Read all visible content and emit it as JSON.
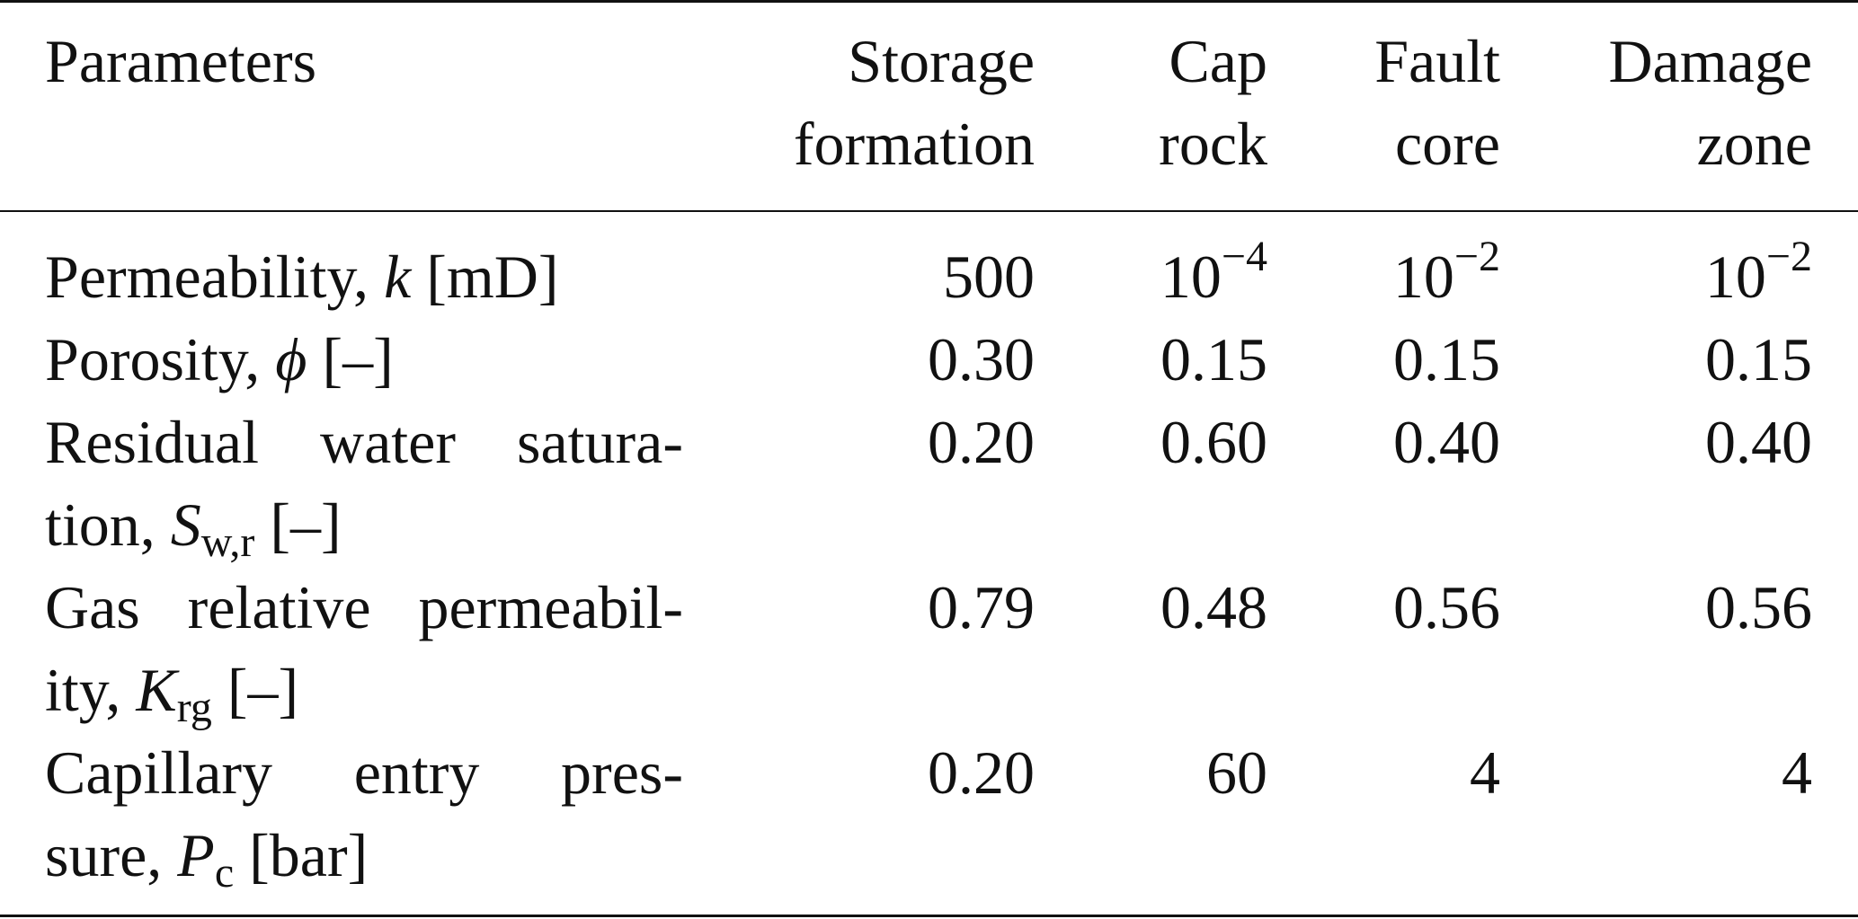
{
  "table": {
    "header": {
      "col0": "Parameters",
      "col1": [
        "Storage",
        "formation"
      ],
      "col2": [
        "Cap",
        "rock"
      ],
      "col3": [
        "Fault",
        "core"
      ],
      "col4": [
        "Damage",
        "zone"
      ]
    },
    "rows": [
      {
        "label_lines": [
          "Permeability, k [mD]"
        ],
        "label_text": "Permeability, ",
        "symbol": "k",
        "unit": " [mD]",
        "values": [
          "500",
          "10",
          "10",
          "10"
        ],
        "exponents": [
          "",
          "−4",
          "−2",
          "−2"
        ]
      },
      {
        "label_text": "Porosity, ",
        "symbol": "ϕ",
        "unit": " [–]",
        "values": [
          "0.30",
          "0.15",
          "0.15",
          "0.15"
        ]
      },
      {
        "label_line1": "Residual water satura-",
        "label_line2_prefix": "tion, ",
        "symbol": "S",
        "subscript": "w,r",
        "unit": " [–]",
        "values": [
          "0.20",
          "0.60",
          "0.40",
          "0.40"
        ]
      },
      {
        "label_line1": "Gas relative permeabil-",
        "label_line2_prefix": "ity, ",
        "symbol": "K",
        "subscript": "rg",
        "unit": " [–]",
        "values": [
          "0.79",
          "0.48",
          "0.56",
          "0.56"
        ]
      },
      {
        "label_line1": "Capillary entry pres-",
        "label_line2_prefix": "sure, ",
        "symbol": "P",
        "subscript": "c",
        "unit": " [bar]",
        "values": [
          "0.20",
          "60",
          "4",
          "4"
        ]
      }
    ]
  }
}
